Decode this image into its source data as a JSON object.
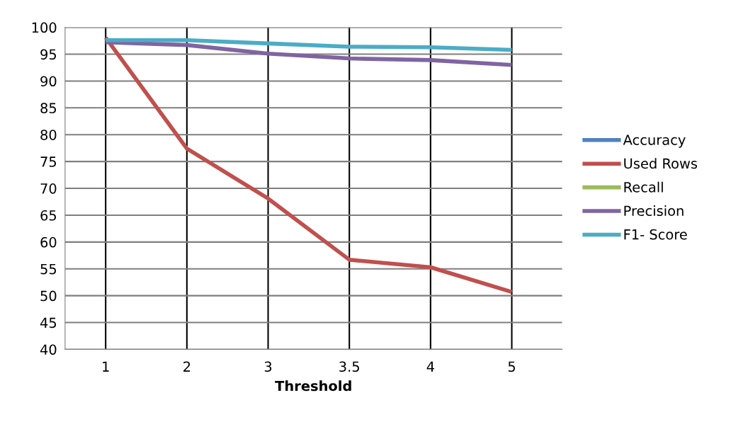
{
  "chart_data": {
    "type": "line",
    "xlabel": "Threshold",
    "categories": [
      "1",
      "2",
      "3",
      "3.5",
      "4",
      "5"
    ],
    "ylim": [
      40,
      100
    ],
    "yticks": [
      40,
      45,
      50,
      55,
      60,
      65,
      70,
      75,
      80,
      85,
      90,
      95,
      100
    ],
    "grid": true,
    "legend": "right",
    "marker": "none",
    "line_style": "solid",
    "series": [
      {
        "name": "Accuracy",
        "color": "#4f81bd",
        "values": [
          null,
          null,
          null,
          null,
          null,
          null
        ]
      },
      {
        "name": "Used Rows",
        "color": "#c0504d",
        "values": [
          98.1,
          77.4,
          68.1,
          56.7,
          55.3,
          50.7
        ]
      },
      {
        "name": "Recall",
        "color": "#9bbb59",
        "values": [
          null,
          null,
          null,
          null,
          null,
          null
        ]
      },
      {
        "name": "Precision",
        "color": "#8064a2",
        "values": [
          97.2,
          96.7,
          95.1,
          94.2,
          93.9,
          93.0
        ]
      },
      {
        "name": "F1- Score",
        "color": "#4bacc6",
        "values": [
          97.6,
          97.6,
          97.0,
          96.4,
          96.3,
          95.8
        ]
      }
    ]
  }
}
